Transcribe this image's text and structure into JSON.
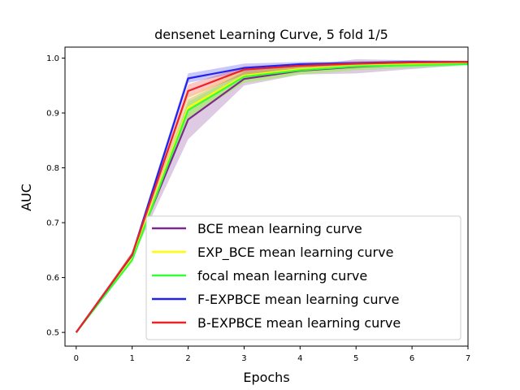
{
  "chart_data": {
    "type": "line",
    "title": "densenet Learning Curve, 5 fold 1/5",
    "xlabel": "Epochs",
    "ylabel": "AUC",
    "xlim": [
      -0.2,
      7.0
    ],
    "ylim": [
      0.475,
      1.02
    ],
    "grid": false,
    "legend_position": "lower-right",
    "x": [
      0,
      1,
      2,
      3,
      4,
      5,
      6,
      7
    ],
    "x_ticks": [
      "0",
      "1",
      "2",
      "3",
      "4",
      "5",
      "6",
      "7"
    ],
    "y_ticks": [
      "0.5",
      "0.6",
      "0.7",
      "0.8",
      "0.9",
      "1.0"
    ],
    "y_tick_values": [
      0.5,
      0.6,
      0.7,
      0.8,
      0.9,
      1.0
    ],
    "series": [
      {
        "name": "BCE mean learning curve",
        "color": "#7b2a8c",
        "values": [
          0.5,
          0.64,
          0.888,
          0.962,
          0.977,
          0.984,
          0.988,
          0.99
        ],
        "band_lower": [
          0.5,
          0.635,
          0.852,
          0.95,
          0.97,
          0.972,
          0.98,
          0.988
        ],
        "band_upper": [
          0.5,
          0.645,
          0.925,
          0.975,
          0.985,
          0.998,
          0.996,
          0.995
        ]
      },
      {
        "name": "EXP_BCE mean learning curve",
        "color": "#ffff00",
        "values": [
          0.5,
          0.635,
          0.91,
          0.968,
          0.98,
          0.986,
          0.989,
          0.991
        ],
        "band_lower": [
          0.5,
          0.63,
          0.89,
          0.955,
          0.97,
          0.978,
          0.984,
          0.988
        ],
        "band_upper": [
          0.5,
          0.64,
          0.93,
          0.98,
          0.988,
          0.992,
          0.994,
          0.994
        ]
      },
      {
        "name": "focal mean learning curve",
        "color": "#33ff33",
        "values": [
          0.5,
          0.632,
          0.905,
          0.966,
          0.978,
          0.985,
          0.987,
          0.989
        ],
        "band_lower": [
          0.5,
          0.628,
          0.89,
          0.955,
          0.97,
          0.978,
          0.982,
          0.986
        ],
        "band_upper": [
          0.5,
          0.636,
          0.92,
          0.975,
          0.985,
          0.99,
          0.992,
          0.992
        ]
      },
      {
        "name": "F-EXPBCE mean learning curve",
        "color": "#2222ee",
        "values": [
          0.5,
          0.641,
          0.963,
          0.982,
          0.989,
          0.991,
          0.993,
          0.993
        ],
        "band_lower": [
          0.5,
          0.636,
          0.955,
          0.975,
          0.985,
          0.988,
          0.99,
          0.991
        ],
        "band_upper": [
          0.5,
          0.646,
          0.972,
          0.99,
          0.993,
          0.994,
          0.996,
          0.995
        ]
      },
      {
        "name": "B-EXPBCE mean learning curve",
        "color": "#ee2222",
        "values": [
          0.5,
          0.642,
          0.94,
          0.979,
          0.986,
          0.99,
          0.992,
          0.993
        ],
        "band_lower": [
          0.5,
          0.637,
          0.928,
          0.97,
          0.98,
          0.985,
          0.988,
          0.99
        ],
        "band_upper": [
          0.5,
          0.647,
          0.952,
          0.985,
          0.99,
          0.993,
          0.995,
          0.995
        ]
      }
    ]
  }
}
